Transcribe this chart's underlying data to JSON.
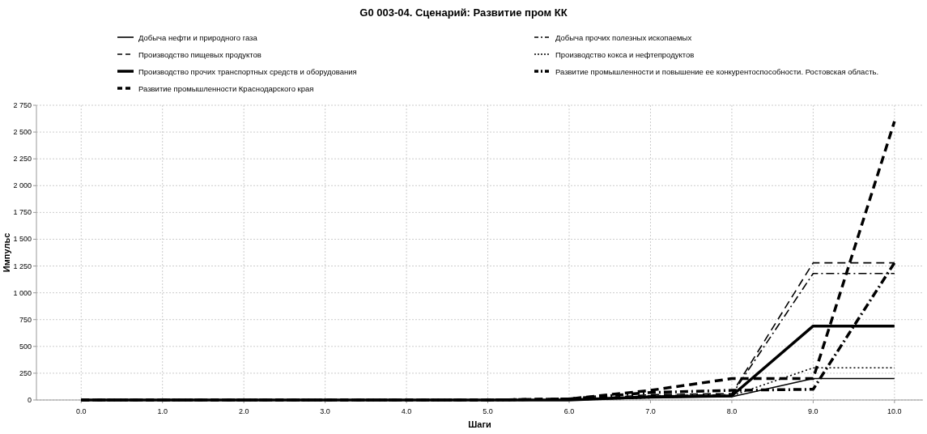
{
  "chart_data": {
    "type": "line",
    "title": "G0 003-04. Сценарий: Развитие пром КК",
    "xlabel": "Шаги",
    "ylabel": "Импульс",
    "x": [
      0,
      1,
      2,
      3,
      4,
      5,
      6,
      7,
      8,
      9,
      10
    ],
    "xlim": [
      -0.55,
      10.35
    ],
    "xticks": [
      {
        "value": 0,
        "label": "0.0"
      },
      {
        "value": 1,
        "label": "1.0"
      },
      {
        "value": 2,
        "label": "2.0"
      },
      {
        "value": 3,
        "label": "3.0"
      },
      {
        "value": 4,
        "label": "4.0"
      },
      {
        "value": 5,
        "label": "5.0"
      },
      {
        "value": 6,
        "label": "6.0"
      },
      {
        "value": 7,
        "label": "7.0"
      },
      {
        "value": 8,
        "label": "8.0"
      },
      {
        "value": 9,
        "label": "9.0"
      },
      {
        "value": 10,
        "label": "10.0"
      }
    ],
    "ylim": [
      0,
      2750
    ],
    "yticks": [
      0,
      250,
      500,
      750,
      {
        "value": 1000,
        "label": "1 000"
      },
      {
        "value": 1250,
        "label": "1 250"
      },
      {
        "value": 1500,
        "label": "1 500"
      },
      {
        "value": 1750,
        "label": "1 750"
      },
      {
        "value": 2000,
        "label": "2 000"
      },
      {
        "value": 2250,
        "label": "2 250"
      },
      {
        "value": 2500,
        "label": "2 500"
      },
      {
        "value": 2750,
        "label": "2 750"
      }
    ],
    "grid": true,
    "legend": "top",
    "marker": "none",
    "series": [
      {
        "name": "Добыча нефти и природного газа",
        "color": "#000000",
        "line_style": "solid",
        "values": [
          0,
          0,
          0,
          0,
          0,
          0,
          0,
          20,
          30,
          200,
          200
        ]
      },
      {
        "name": "Добыча прочих полезных ископаемых",
        "color": "#000000",
        "line_style": "dashdot",
        "values": [
          0,
          0,
          0,
          0,
          0,
          0,
          0,
          40,
          50,
          1180,
          1180
        ]
      },
      {
        "name": "Производство пищевых продуктов",
        "color": "#000000",
        "line_style": "dashed",
        "values": [
          0,
          0,
          0,
          0,
          0,
          0,
          0,
          50,
          60,
          1280,
          1280
        ]
      },
      {
        "name": "Производство кокса и нефтепродуктов",
        "color": "#000000",
        "line_style": "dotted",
        "values": [
          0,
          0,
          0,
          0,
          0,
          0,
          0,
          20,
          40,
          300,
          300
        ]
      },
      {
        "name": "Производство прочих транспортных средств и оборудования",
        "color": "#000000",
        "line_style": "solid",
        "values": [
          0,
          0,
          0,
          0,
          0,
          0,
          0,
          30,
          40,
          690,
          690
        ]
      },
      {
        "name": "Развитие промышленности и повышение ее конкурентоспособности. Ростовская область.",
        "color": "#000000",
        "line_style": "dashdot",
        "values": [
          0,
          0,
          0,
          0,
          0,
          0,
          10,
          70,
          90,
          100,
          1280
        ]
      },
      {
        "name": "Развитие промышленности Краснодарского края",
        "color": "#000000",
        "line_style": "dashed",
        "values": [
          0,
          0,
          0,
          0,
          0,
          0,
          10,
          90,
          200,
          200,
          2600
        ]
      }
    ]
  }
}
